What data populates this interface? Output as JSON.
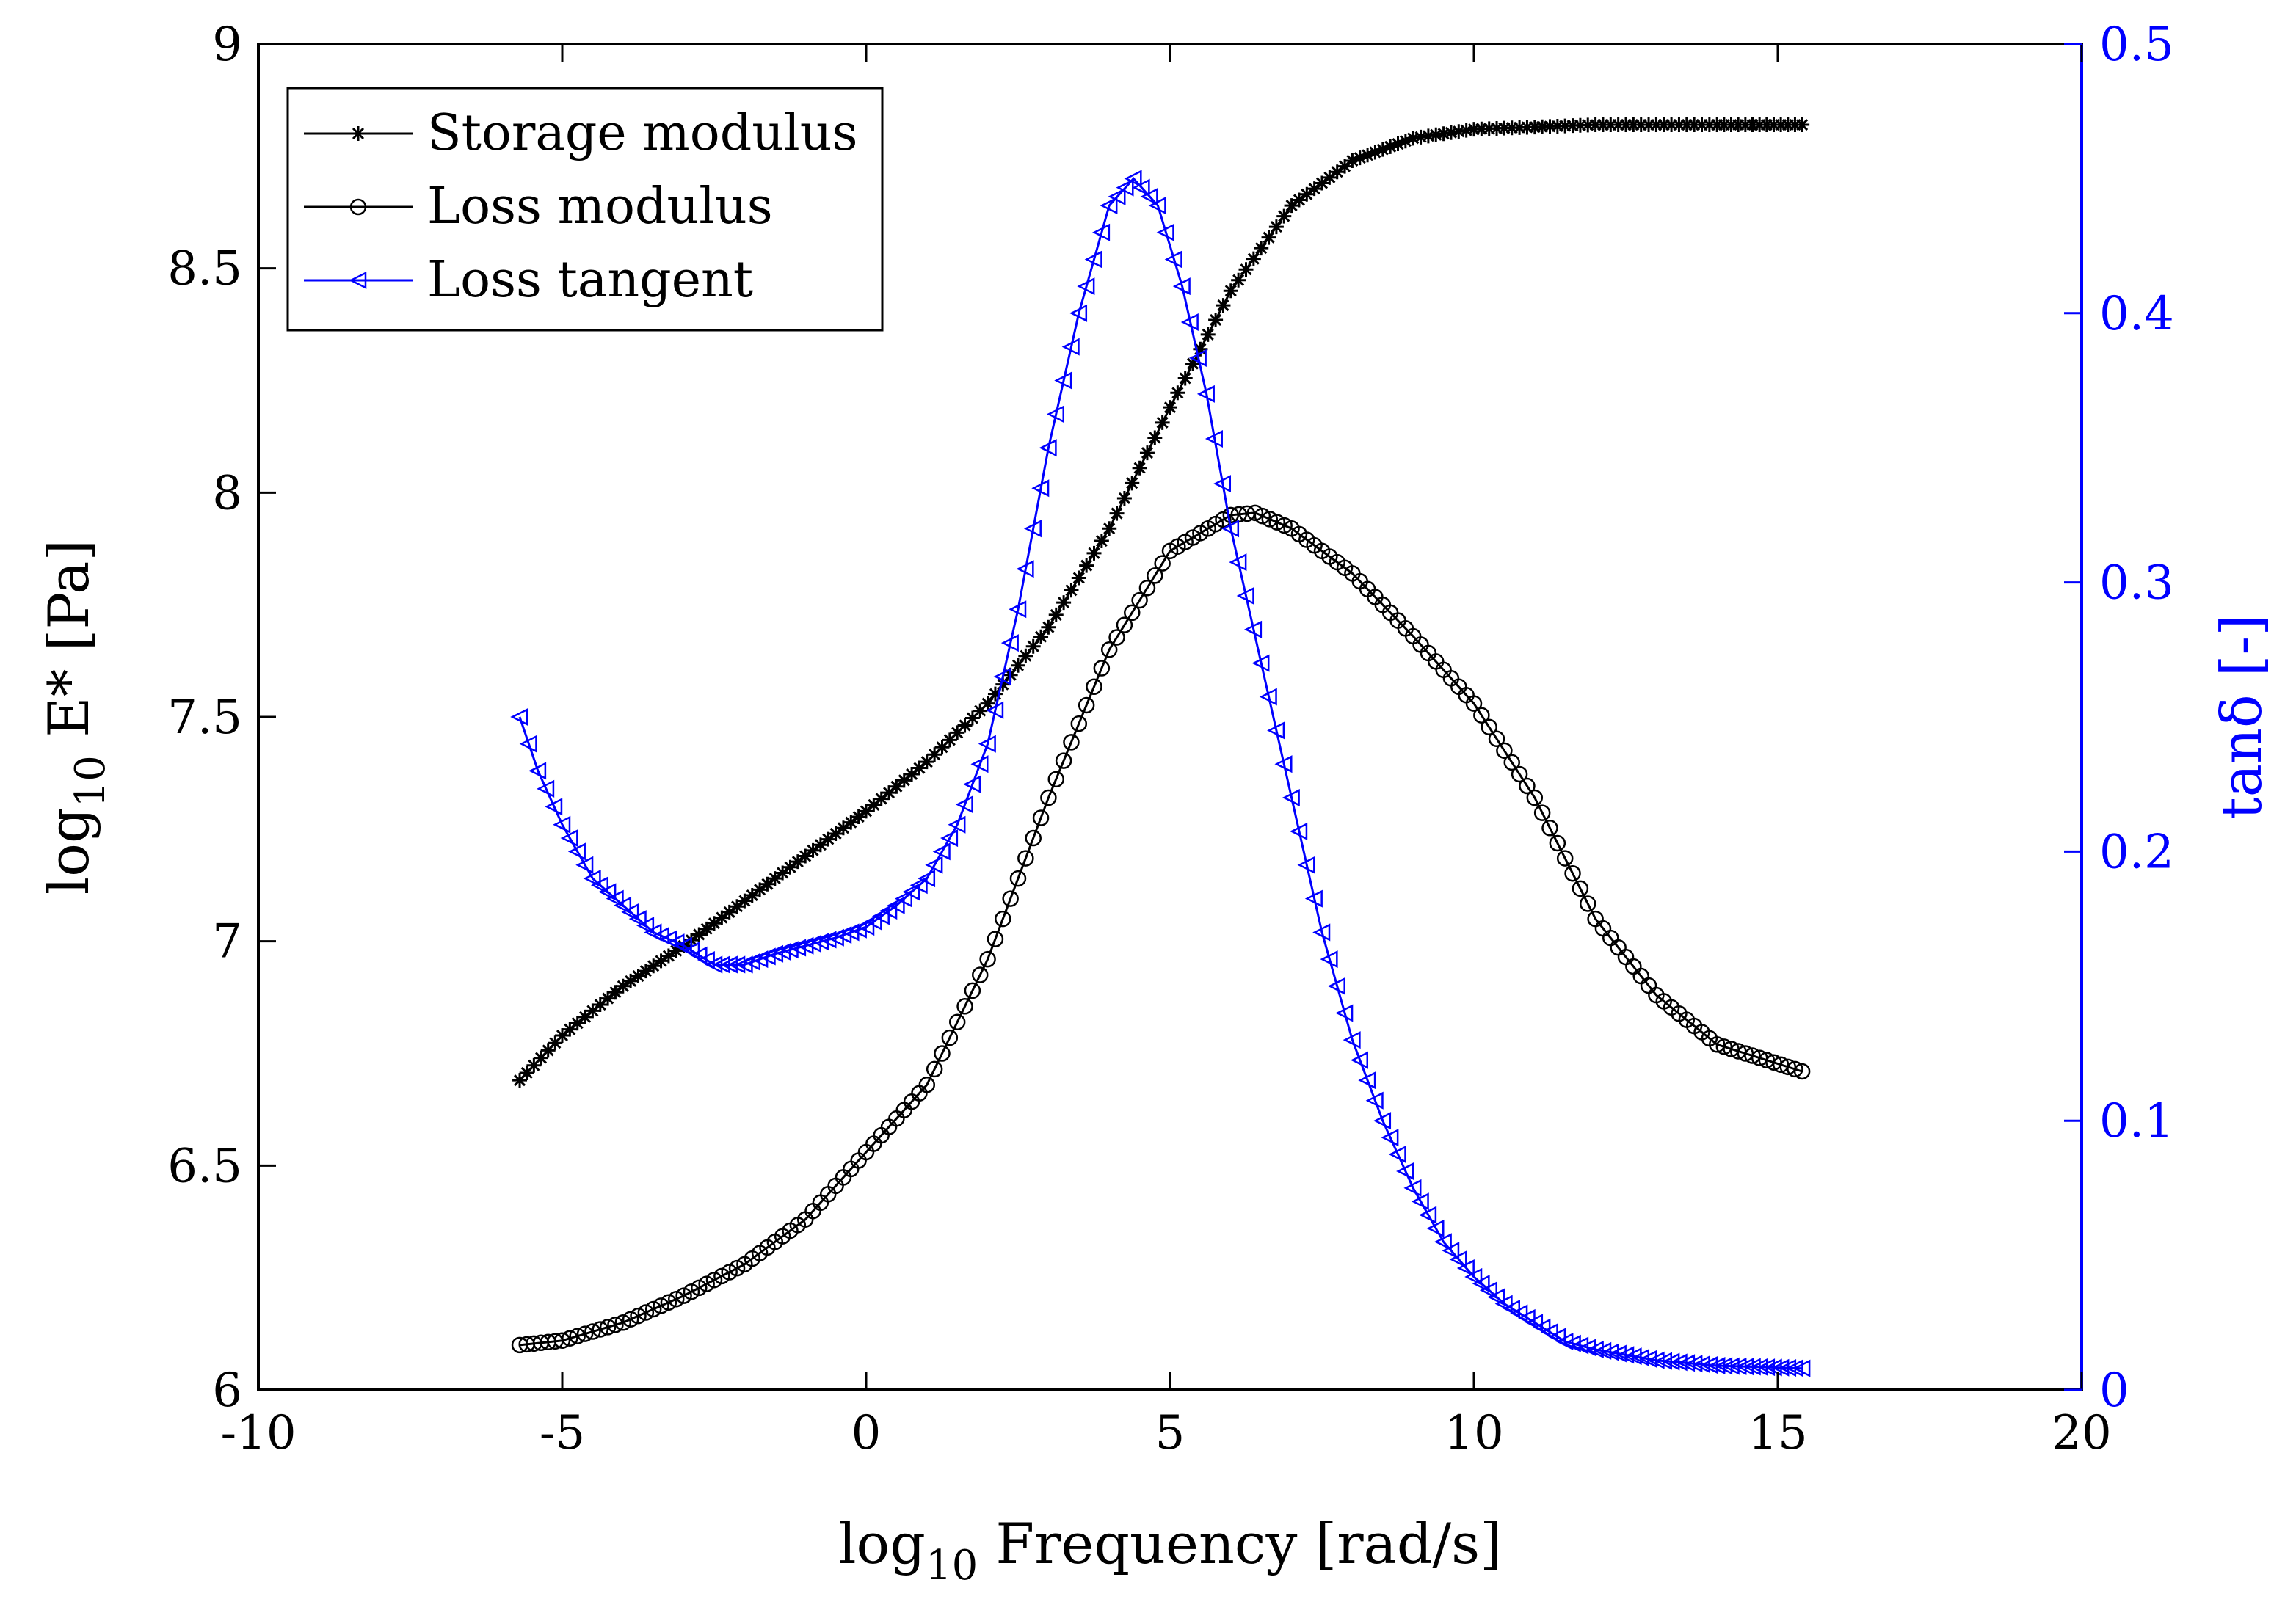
{
  "chart_data": {
    "type": "line",
    "xlabel": {
      "base": "log",
      "sub": "10",
      "rest": " Frequency [rad/s]"
    },
    "ylabel": {
      "base": "log",
      "sub": "10",
      "rest": " E* [Pa]"
    },
    "y2label": "tanδ [-]",
    "xlim": [
      -10,
      20
    ],
    "ylim": [
      6,
      9
    ],
    "y2lim": [
      0,
      0.5
    ],
    "xticks": [
      -10,
      -5,
      0,
      5,
      10,
      15,
      20
    ],
    "yticks": [
      6,
      6.5,
      7,
      7.5,
      8,
      8.5,
      9
    ],
    "y2ticks": [
      0,
      0.1,
      0.2,
      0.3,
      0.4,
      0.5
    ],
    "legend_position": "top-left",
    "grid": false,
    "colors": {
      "left_axis": "#000000",
      "right_axis": "#0000ff"
    },
    "series": [
      {
        "name": "Storage modulus",
        "axis": "left",
        "marker": "star",
        "color": "#000000",
        "points": [
          [
            -5.7,
            6.69
          ],
          [
            -5.0,
            6.79
          ],
          [
            -4.0,
            6.9
          ],
          [
            -3.0,
            6.99
          ],
          [
            -2.0,
            7.09
          ],
          [
            -1.0,
            7.19
          ],
          [
            0.0,
            7.29
          ],
          [
            1.0,
            7.4
          ],
          [
            2.0,
            7.53
          ],
          [
            3.0,
            7.7
          ],
          [
            4.0,
            7.92
          ],
          [
            5.0,
            8.19
          ],
          [
            6.0,
            8.45
          ],
          [
            7.0,
            8.64
          ],
          [
            8.0,
            8.74
          ],
          [
            9.0,
            8.79
          ],
          [
            10.0,
            8.81
          ],
          [
            11.0,
            8.815
          ],
          [
            12.0,
            8.82
          ],
          [
            13.0,
            8.82
          ],
          [
            14.0,
            8.82
          ],
          [
            15.4,
            8.82
          ]
        ]
      },
      {
        "name": "Loss modulus",
        "axis": "left",
        "marker": "circle",
        "color": "#000000",
        "points": [
          [
            -5.7,
            6.1
          ],
          [
            -5.0,
            6.11
          ],
          [
            -4.0,
            6.15
          ],
          [
            -3.0,
            6.21
          ],
          [
            -2.0,
            6.28
          ],
          [
            -1.0,
            6.38
          ],
          [
            0.0,
            6.53
          ],
          [
            1.0,
            6.68
          ],
          [
            2.0,
            6.96
          ],
          [
            3.0,
            7.32
          ],
          [
            4.0,
            7.65
          ],
          [
            5.0,
            7.87
          ],
          [
            6.0,
            7.95
          ],
          [
            6.4,
            7.955
          ],
          [
            7.0,
            7.92
          ],
          [
            8.0,
            7.82
          ],
          [
            9.0,
            7.68
          ],
          [
            10.0,
            7.53
          ],
          [
            11.0,
            7.32
          ],
          [
            12.0,
            7.05
          ],
          [
            13.0,
            6.88
          ],
          [
            14.0,
            6.77
          ],
          [
            15.4,
            6.71
          ]
        ]
      },
      {
        "name": "Loss tangent",
        "axis": "right",
        "marker": "triangle-left",
        "color": "#0000ff",
        "points": [
          [
            -5.7,
            0.25
          ],
          [
            -5.4,
            0.23
          ],
          [
            -5.0,
            0.21
          ],
          [
            -4.5,
            0.19
          ],
          [
            -4.0,
            0.18
          ],
          [
            -3.5,
            0.17
          ],
          [
            -3.0,
            0.165
          ],
          [
            -2.5,
            0.158
          ],
          [
            -2.0,
            0.158
          ],
          [
            -1.5,
            0.162
          ],
          [
            -1.0,
            0.165
          ],
          [
            -0.5,
            0.168
          ],
          [
            0.0,
            0.172
          ],
          [
            0.5,
            0.18
          ],
          [
            1.0,
            0.19
          ],
          [
            1.5,
            0.21
          ],
          [
            2.0,
            0.24
          ],
          [
            2.5,
            0.29
          ],
          [
            3.0,
            0.35
          ],
          [
            3.5,
            0.4
          ],
          [
            4.0,
            0.44
          ],
          [
            4.4,
            0.45
          ],
          [
            4.8,
            0.44
          ],
          [
            5.2,
            0.41
          ],
          [
            5.6,
            0.37
          ],
          [
            6.0,
            0.32
          ],
          [
            6.5,
            0.27
          ],
          [
            7.0,
            0.22
          ],
          [
            7.5,
            0.17
          ],
          [
            8.0,
            0.13
          ],
          [
            8.5,
            0.1
          ],
          [
            9.0,
            0.075
          ],
          [
            9.5,
            0.055
          ],
          [
            10.0,
            0.042
          ],
          [
            10.5,
            0.032
          ],
          [
            11.0,
            0.025
          ],
          [
            11.5,
            0.018
          ],
          [
            12.0,
            0.015
          ],
          [
            13.0,
            0.011
          ],
          [
            14.0,
            0.009
          ],
          [
            15.4,
            0.008
          ]
        ]
      }
    ]
  }
}
